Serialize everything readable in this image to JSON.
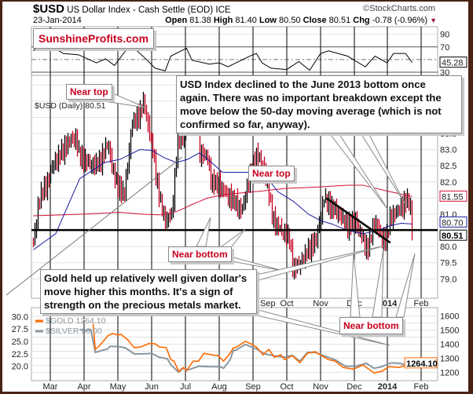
{
  "header": {
    "symbol": "$USD",
    "name": "US Dollar Index - Cash Settle (EOD) ICE",
    "date": "23-Jan-2014",
    "copyright": "©StockCharts.com",
    "open_label": "Open",
    "open": "81.38",
    "high_label": "High",
    "high": "81.40",
    "low_label": "Low",
    "low": "80.50",
    "close_label": "Close",
    "close": "80.51",
    "chg_label": "Chg",
    "chg": "-0.78 (-0.96%)"
  },
  "watermark": "SunshineProfits.com",
  "annotations": {
    "near_top_1": "Near top",
    "near_top_2": "Near top",
    "near_bottom_1": "Near bottom",
    "near_bottom_2": "Near bottom",
    "usd_comment": "USD Index declined to the June 2013 bottom once again. There was no important breakdown except the move below the 50-day moving average (which is not confirmed so far, anyway).",
    "gold_comment": "Gold held up relatively well given dollar's move higher this months. It's a sign of strength on the precious metals market."
  },
  "colors": {
    "up": "#000000",
    "down": "#c8001e",
    "ma50": "#1a1aa0",
    "ma200": "#d0103a",
    "gold": "#ff6a00",
    "silver": "#8a979f",
    "frame": "#4a2212"
  },
  "chart_data": [
    {
      "type": "line",
      "panel": "RSI",
      "yticks": [
        90,
        70,
        30
      ],
      "ylim": [
        25,
        102
      ],
      "reference_lines": [
        70,
        50,
        30
      ],
      "last_value": "45.28",
      "x": [
        "2013-02-15",
        "2013-02-19",
        "2013-03-02",
        "2013-03-13",
        "2013-03-27",
        "2013-04-12",
        "2013-04-20",
        "2013-04-28",
        "2013-05-09",
        "2013-05-16",
        "2013-05-28",
        "2013-06-04",
        "2013-06-13",
        "2013-06-18",
        "2013-07-02",
        "2013-07-07",
        "2013-07-23",
        "2013-08-01",
        "2013-08-09",
        "2013-08-29",
        "2013-09-04",
        "2013-09-09",
        "2013-09-17",
        "2013-10-01",
        "2013-10-12",
        "2013-10-22",
        "2013-11-01",
        "2013-11-08",
        "2013-11-25",
        "2013-12-01",
        "2013-12-11",
        "2013-12-20",
        "2013-12-31",
        "2014-01-06",
        "2014-01-17",
        "2014-01-23"
      ],
      "values": [
        63.8,
        72.3,
        71,
        59.6,
        57.5,
        44.8,
        51.1,
        40.6,
        66,
        68,
        49,
        36.3,
        32.1,
        55.4,
        68,
        49,
        42.7,
        44.8,
        38.5,
        55.4,
        59.6,
        44.8,
        36.3,
        34.2,
        46.9,
        33,
        59.6,
        63.8,
        55.4,
        49,
        38.5,
        55.4,
        44.8,
        59.6,
        59.6,
        45.28
      ]
    },
    {
      "type": "ohlc",
      "panel": "price",
      "legend": "$USD (Daily) 80.51",
      "yticks": [
        83.5,
        83.0,
        82.5,
        82.0,
        81.0,
        80.0,
        79.5,
        79.0
      ],
      "ylim": [
        78.4,
        85.3
      ],
      "xticks": [
        "Sep",
        "Oct",
        "Nov",
        "Dec",
        "2014",
        "Feb"
      ],
      "support_level": 80.51,
      "last_labels": {
        "ma200": "81.55",
        "ma50": "80.70",
        "close": "80.51"
      },
      "close_series": {
        "x": [
          "2013-02-15",
          "2013-02-20",
          "2013-02-27",
          "2013-03-03",
          "2013-03-17",
          "2013-03-24",
          "2013-03-28",
          "2013-04-08",
          "2013-04-15",
          "2013-04-22",
          "2013-04-29",
          "2013-05-07",
          "2013-05-14",
          "2013-05-21",
          "2013-05-25",
          "2013-05-28",
          "2013-06-01",
          "2013-06-08",
          "2013-06-13",
          "2013-06-19",
          "2013-06-24",
          "2013-06-30",
          "2013-07-06",
          "2013-07-11",
          "2013-07-14",
          "2013-07-21",
          "2013-07-25",
          "2013-08-01",
          "2013-08-08",
          "2013-08-15",
          "2013-08-22",
          "2013-08-29",
          "2013-09-05",
          "2013-09-12",
          "2013-09-19",
          "2013-09-26",
          "2013-10-03",
          "2013-10-07",
          "2013-10-13",
          "2013-10-21",
          "2013-10-28",
          "2013-11-04",
          "2013-11-11",
          "2013-11-18",
          "2013-11-25",
          "2013-12-02",
          "2013-12-09",
          "2013-12-13",
          "2013-12-20",
          "2013-12-27",
          "2013-12-31",
          "2014-01-03",
          "2014-01-10",
          "2014-01-17",
          "2014-01-21",
          "2014-01-23"
        ],
        "values": [
          80.1,
          81.5,
          82.0,
          82.5,
          83.2,
          83.4,
          82.8,
          82.5,
          82.6,
          83.2,
          82.0,
          81.6,
          83.8,
          84.1,
          84.5,
          83.9,
          83.2,
          81.5,
          80.8,
          81.0,
          83.2,
          83.5,
          84.7,
          84.4,
          82.9,
          82.8,
          82.0,
          81.9,
          81.6,
          81.4,
          81.1,
          82.2,
          82.9,
          82.3,
          80.8,
          80.5,
          80.3,
          79.3,
          79.45,
          79.9,
          80.2,
          81.5,
          81.2,
          81.0,
          80.65,
          80.8,
          80.2,
          79.9,
          80.8,
          80.2,
          80.3,
          80.9,
          81.1,
          81.4,
          81.4,
          80.51
        ]
      },
      "ma50": {
        "x": [
          "2013-02-15",
          "2013-03-06",
          "2013-03-28",
          "2013-04-19",
          "2013-05-03",
          "2013-05-21",
          "2013-06-01",
          "2013-06-12",
          "2013-06-23",
          "2013-07-03",
          "2013-07-14",
          "2013-07-25",
          "2013-08-04",
          "2013-08-18",
          "2013-09-02",
          "2013-09-12",
          "2013-09-23",
          "2013-10-07",
          "2013-10-21",
          "2013-11-01",
          "2013-11-11",
          "2013-11-25",
          "2013-12-09",
          "2013-12-23",
          "2014-01-03",
          "2014-01-13",
          "2014-01-23"
        ],
        "values": [
          79.9,
          80.4,
          82.1,
          82.6,
          82.7,
          83.0,
          82.98,
          82.75,
          82.6,
          82.7,
          82.9,
          82.6,
          82.3,
          82.3,
          82.3,
          82.2,
          81.7,
          81.4,
          81.0,
          80.8,
          80.7,
          80.5,
          80.4,
          80.5,
          80.65,
          80.72,
          80.7
        ]
      },
      "ma200": {
        "x": [
          "2013-02-15",
          "2013-03-28",
          "2013-05-03",
          "2013-05-25",
          "2013-06-08",
          "2013-06-23",
          "2013-07-07",
          "2013-07-21",
          "2013-08-04",
          "2013-08-18",
          "2013-09-09",
          "2013-09-30",
          "2013-10-28",
          "2013-11-25",
          "2013-12-09",
          "2013-12-31",
          "2014-01-23"
        ],
        "values": [
          80.95,
          81.0,
          81.06,
          81.0,
          80.98,
          81.08,
          81.3,
          81.5,
          81.6,
          81.65,
          81.72,
          81.8,
          81.84,
          81.9,
          81.9,
          81.72,
          81.55
        ]
      }
    },
    {
      "type": "line",
      "panel": "gold-silver",
      "xticks": [
        "Mar",
        "Apr",
        "May",
        "Jun",
        "Jul",
        "Aug",
        "Sep",
        "Oct",
        "Nov",
        "Dec",
        "2014",
        "Feb"
      ],
      "yticks_right": [
        1600,
        1500,
        1400,
        1300,
        1200
      ],
      "ylim_right": [
        1140,
        1660
      ],
      "yticks_left": [
        "30.0",
        "27.5",
        "25.0",
        "22.5",
        "20.0"
      ],
      "ylim_left": [
        17.1,
        31.8
      ],
      "series": [
        {
          "name": "$GOLD 1264.10",
          "axis": "right",
          "last_value": "1264.10",
          "x": [
            "2013-04-09",
            "2013-04-11",
            "2013-04-15",
            "2013-04-22",
            "2013-04-26",
            "2013-05-01",
            "2013-05-04",
            "2013-05-10",
            "2013-05-16",
            "2013-05-22",
            "2013-05-29",
            "2013-06-04",
            "2013-06-08",
            "2013-06-14",
            "2013-06-18",
            "2013-06-21",
            "2013-06-25",
            "2013-06-29",
            "2013-07-02",
            "2013-07-08",
            "2013-07-13",
            "2013-07-18",
            "2013-07-25",
            "2013-07-31",
            "2013-08-05",
            "2013-08-11",
            "2013-08-14",
            "2013-08-16",
            "2013-08-25",
            "2013-08-30",
            "2013-09-04",
            "2013-09-10",
            "2013-09-15",
            "2013-09-20",
            "2013-09-26",
            "2013-09-29",
            "2013-10-06",
            "2013-10-13",
            "2013-10-20",
            "2013-10-27",
            "2013-11-02",
            "2013-11-08",
            "2013-11-14",
            "2013-11-21",
            "2013-11-30",
            "2013-12-09",
            "2013-12-19",
            "2013-12-26",
            "2014-01-02",
            "2014-01-11",
            "2014-01-23"
          ],
          "values": [
            1544,
            1363,
            1392,
            1459,
            1476,
            1465,
            1470,
            1431,
            1375,
            1380,
            1403,
            1403,
            1380,
            1375,
            1290,
            1279,
            1206,
            1234,
            1211,
            1279,
            1279,
            1335,
            1324,
            1318,
            1279,
            1335,
            1375,
            1375,
            1420,
            1403,
            1380,
            1324,
            1363,
            1307,
            1324,
            1290,
            1318,
            1268,
            1335,
            1346,
            1318,
            1290,
            1279,
            1234,
            1222,
            1251,
            1195,
            1206,
            1240,
            1234,
            1264.1
          ]
        },
        {
          "name": "$SILVER 20.00",
          "axis": "left",
          "last_value": "20.00",
          "x": [
            "2013-03-28",
            "2013-04-02",
            "2013-04-07",
            "2013-04-11",
            "2013-04-22",
            "2013-04-24",
            "2013-05-01",
            "2013-05-08",
            "2013-05-16",
            "2013-05-24",
            "2013-06-01",
            "2013-06-08",
            "2013-06-15",
            "2013-06-18",
            "2013-06-25",
            "2013-06-29",
            "2013-07-04",
            "2013-07-13",
            "2013-07-25",
            "2013-08-02",
            "2013-08-05",
            "2013-08-11",
            "2013-08-14",
            "2013-08-16",
            "2013-08-25",
            "2013-09-04",
            "2013-09-11",
            "2013-09-20",
            "2013-09-29",
            "2013-10-06",
            "2013-10-13",
            "2013-10-20",
            "2013-10-27",
            "2013-11-04",
            "2013-11-14",
            "2013-11-23",
            "2013-12-02",
            "2013-12-12",
            "2013-12-19",
            "2013-12-26",
            "2014-01-04",
            "2014-01-11",
            "2014-01-23"
          ],
          "values": [
            27.4,
            27.1,
            27.4,
            22.8,
            23.5,
            24.0,
            24.0,
            23.7,
            22.5,
            22.5,
            22.6,
            21.8,
            21.5,
            20.3,
            18.8,
            19.6,
            19.3,
            20.0,
            19.9,
            19.9,
            19.6,
            21.3,
            23.2,
            23.2,
            24.4,
            23.5,
            22.5,
            22.1,
            21.8,
            22.2,
            21.0,
            22.8,
            22.8,
            22.1,
            21.3,
            20.0,
            20.0,
            20.6,
            19.6,
            19.9,
            20.7,
            20.6,
            20.0
          ]
        }
      ]
    }
  ]
}
